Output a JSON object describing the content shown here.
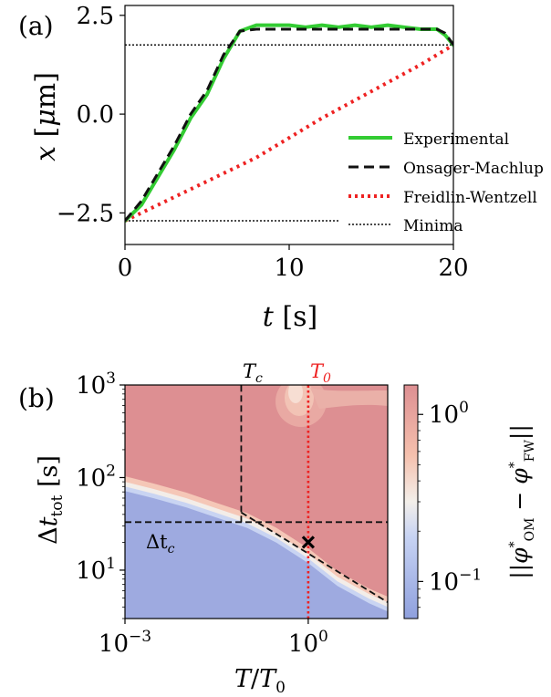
{
  "panel_a_label": "(a)",
  "panel_b_label": "(b)",
  "colors": {
    "experimental": "#33cc33",
    "onsager": "#111111",
    "freidlin": "#ee2222",
    "minima": "#111111",
    "t0_marker": "#ee2222"
  },
  "chart_data": [
    {
      "type": "line",
      "panel": "(a)",
      "xlabel": "t [s]",
      "ylabel": "x [μm]",
      "xlim": [
        0,
        20
      ],
      "ylim": [
        -3.3,
        2.75
      ],
      "xticks": [
        0,
        10,
        20
      ],
      "yticks": [
        2.5,
        0.0,
        -2.5
      ],
      "xtick_labels": [
        "0",
        "10",
        "20"
      ],
      "ytick_labels": [
        "2.5",
        "0.0",
        "−2.5"
      ],
      "grid": false,
      "legend_position": "bottom-right",
      "series": [
        {
          "name": "Experimental",
          "style": "solid",
          "x": [
            0,
            1,
            2,
            3,
            4,
            5,
            6,
            7,
            8,
            9,
            10,
            11,
            12,
            13,
            14,
            15,
            16,
            17,
            18,
            19,
            19.5,
            20
          ],
          "y": [
            -2.7,
            -2.3,
            -1.6,
            -0.9,
            -0.1,
            0.5,
            1.4,
            2.1,
            2.25,
            2.25,
            2.25,
            2.2,
            2.25,
            2.2,
            2.25,
            2.2,
            2.25,
            2.2,
            2.15,
            2.15,
            2.0,
            1.75
          ]
        },
        {
          "name": "Onsager-Machlup",
          "style": "dashed",
          "x": [
            0,
            1,
            2,
            3,
            4,
            5,
            6,
            7,
            8,
            9,
            10,
            11,
            12,
            13,
            14,
            15,
            16,
            17,
            18,
            19,
            19.5,
            20
          ],
          "y": [
            -2.7,
            -2.2,
            -1.5,
            -0.8,
            0.0,
            0.6,
            1.5,
            2.1,
            2.15,
            2.15,
            2.15,
            2.15,
            2.15,
            2.15,
            2.15,
            2.15,
            2.15,
            2.15,
            2.15,
            2.15,
            2.05,
            1.75
          ]
        },
        {
          "name": "Freidlin-Wentzell",
          "style": "dotted",
          "x": [
            0,
            2,
            4,
            6,
            8,
            10,
            12,
            14,
            16,
            18,
            20
          ],
          "y": [
            -2.7,
            -2.3,
            -1.9,
            -1.5,
            -1.1,
            -0.6,
            -0.1,
            0.35,
            0.8,
            1.25,
            1.75
          ]
        },
        {
          "name": "Minima",
          "style": "dotted-thin",
          "segments": [
            {
              "x": [
                0,
                20
              ],
              "y": [
                1.75,
                1.75
              ]
            },
            {
              "x": [
                0,
                13
              ],
              "y": [
                -2.7,
                -2.7
              ]
            }
          ]
        }
      ]
    },
    {
      "type": "heatmap",
      "panel": "(b)",
      "xlabel": "T/T₀",
      "ylabel": "Δt_tot [s]",
      "x_scale": "log",
      "y_scale": "log",
      "xlim": [
        0.001,
        20
      ],
      "ylim": [
        3,
        1000
      ],
      "xticks": [
        0.001,
        1
      ],
      "xtick_labels": [
        "10⁻³",
        "10⁰"
      ],
      "yticks": [
        10,
        100,
        1000
      ],
      "ytick_labels": [
        "10¹",
        "10²",
        "10³"
      ],
      "colorbar": {
        "label": "||φ*_OM − φ*_FW||",
        "scale": "log",
        "range": [
          0.06,
          1.5
        ],
        "ticks": [
          1,
          0.1
        ],
        "tick_labels": [
          "10⁰",
          "10⁻¹"
        ]
      },
      "boundary_curve": {
        "x": [
          0.001,
          0.003,
          0.01,
          0.03,
          0.1,
          0.3,
          1,
          3,
          10,
          20
        ],
        "y": [
          90,
          75,
          60,
          47,
          36,
          25,
          15,
          8.5,
          5.5,
          4.5
        ]
      },
      "annotations": [
        {
          "label": "T_c",
          "x": 0.08
        },
        {
          "label": "T₀",
          "x": 1
        },
        {
          "label": "Δt_c",
          "y": 33
        }
      ],
      "marker": {
        "symbol": "x",
        "x": 1,
        "y": 20
      },
      "guide_lines": [
        {
          "style": "dashed",
          "x": [
            0.08,
            0.08
          ],
          "y": [
            33,
            1000
          ]
        },
        {
          "style": "dashed",
          "x": [
            0.001,
            20
          ],
          "y": [
            33,
            33
          ]
        },
        {
          "style": "dashed",
          "x": [
            0.08,
            20
          ],
          "y": [
            42,
            4.5
          ]
        },
        {
          "style": "dotted-red",
          "x": [
            1,
            1
          ],
          "y": [
            3,
            1000
          ]
        }
      ]
    }
  ],
  "labels": {
    "legend_experimental": "Experimental",
    "legend_onsager": "Onsager-Machlup",
    "legend_freidlin": "Freidlin-Wentzell",
    "legend_minima": "Minima",
    "tc": "T",
    "tc_sub": "c",
    "t0": "T",
    "t0_sub": "0",
    "dtc": "Δt",
    "dtc_sub": "c"
  }
}
